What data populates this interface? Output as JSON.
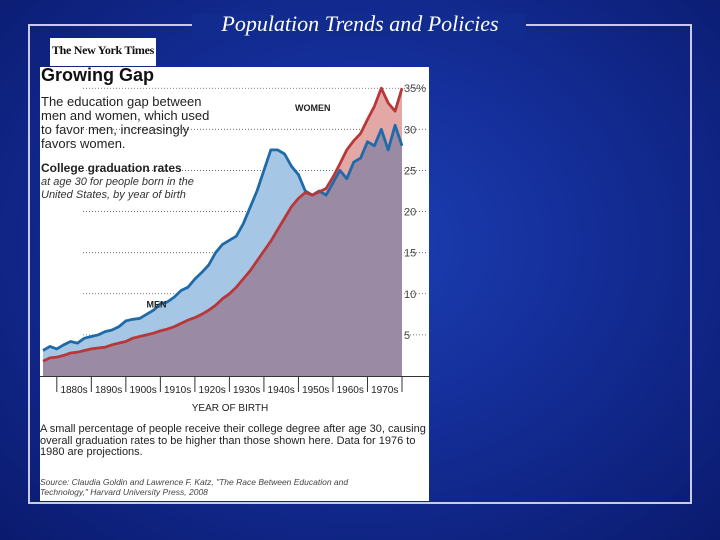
{
  "slide": {
    "title": "Population Trends and Policies"
  },
  "logo": {
    "text": "The New York Times"
  },
  "figure": {
    "title": "Growing Gap",
    "subtitle": "The education gap between men and women, which used to favor men, increasingly favors women.",
    "rate_heading": "College graduation rates",
    "rate_desc": "at age 30 for people born in the United States, by year of birth",
    "note": "A small percentage of people receive their college degree after age 30, causing overall graduation rates to be higher than those shown here. Data for 1976 to 1980 are projections.",
    "source": "Source: Claudia Goldin and Lawrence F. Katz, \"The Race Between Education and Technology,\" Harvard University Press, 2008"
  },
  "colors": {
    "men_line": "#1f6aa8",
    "men_fill": "#a6c6e6",
    "women_line": "#b8383a",
    "women_fill": "#e3a7a5",
    "overlap_fill": "#9b8aa4"
  },
  "chart_data": {
    "type": "area",
    "title": "College graduation rates at age 30",
    "xlabel": "YEAR OF BIRTH",
    "ylabel": "",
    "xlim": [
      1876,
      1980
    ],
    "ylim": [
      0,
      36
    ],
    "x_tick_labels": [
      "1880s",
      "1890s",
      "1900s",
      "1910s",
      "1920s",
      "1930s",
      "1940s",
      "1950s",
      "1960s",
      "1970s"
    ],
    "y_tick_labels": [
      "5",
      "10",
      "15",
      "20",
      "25",
      "30",
      "35%"
    ],
    "y_ticks": [
      5,
      10,
      15,
      20,
      25,
      30,
      35
    ],
    "series": [
      {
        "name": "MEN",
        "x": [
          1876,
          1878,
          1880,
          1882,
          1884,
          1886,
          1888,
          1890,
          1892,
          1894,
          1896,
          1898,
          1900,
          1902,
          1904,
          1906,
          1908,
          1910,
          1912,
          1914,
          1916,
          1918,
          1920,
          1922,
          1924,
          1926,
          1928,
          1930,
          1932,
          1934,
          1936,
          1938,
          1940,
          1942,
          1944,
          1946,
          1948,
          1950,
          1952,
          1954,
          1956,
          1958,
          1960,
          1962,
          1964,
          1966,
          1968,
          1970,
          1972,
          1974,
          1976,
          1978,
          1980
        ],
        "values": [
          3.1,
          3.6,
          3.3,
          3.8,
          4.2,
          4.0,
          4.6,
          4.8,
          5.0,
          5.4,
          5.6,
          6.0,
          6.7,
          6.9,
          7.0,
          7.5,
          8.0,
          8.8,
          9.0,
          9.6,
          10.4,
          10.8,
          11.8,
          12.6,
          13.5,
          15.0,
          16.0,
          16.5,
          17.0,
          18.5,
          20.5,
          22.5,
          25.0,
          27.5,
          27.5,
          27.0,
          25.5,
          24.5,
          22.5,
          22.0,
          22.5,
          22.0,
          23.5,
          25.0,
          24.0,
          26.0,
          26.5,
          28.5,
          28.0,
          30.0,
          27.5,
          30.5,
          28.0
        ]
      },
      {
        "name": "WOMEN",
        "x": [
          1876,
          1878,
          1880,
          1882,
          1884,
          1886,
          1888,
          1890,
          1892,
          1894,
          1896,
          1898,
          1900,
          1902,
          1904,
          1906,
          1908,
          1910,
          1912,
          1914,
          1916,
          1918,
          1920,
          1922,
          1924,
          1926,
          1928,
          1930,
          1932,
          1934,
          1936,
          1938,
          1940,
          1942,
          1944,
          1946,
          1948,
          1950,
          1952,
          1954,
          1956,
          1958,
          1960,
          1962,
          1964,
          1966,
          1968,
          1970,
          1972,
          1974,
          1976,
          1978,
          1980
        ],
        "values": [
          1.8,
          2.2,
          2.3,
          2.5,
          2.8,
          2.9,
          3.1,
          3.3,
          3.4,
          3.5,
          3.8,
          4.0,
          4.2,
          4.6,
          4.8,
          5.0,
          5.2,
          5.5,
          5.7,
          6.0,
          6.4,
          6.8,
          7.1,
          7.5,
          8.0,
          8.6,
          9.4,
          10.0,
          10.8,
          11.8,
          12.8,
          14.0,
          15.2,
          16.4,
          17.8,
          19.2,
          20.6,
          21.6,
          22.3,
          22.0,
          22.4,
          22.8,
          24.2,
          25.8,
          27.5,
          28.6,
          29.5,
          31.2,
          32.8,
          35.0,
          33.2,
          32.2,
          35.0
        ]
      }
    ]
  }
}
